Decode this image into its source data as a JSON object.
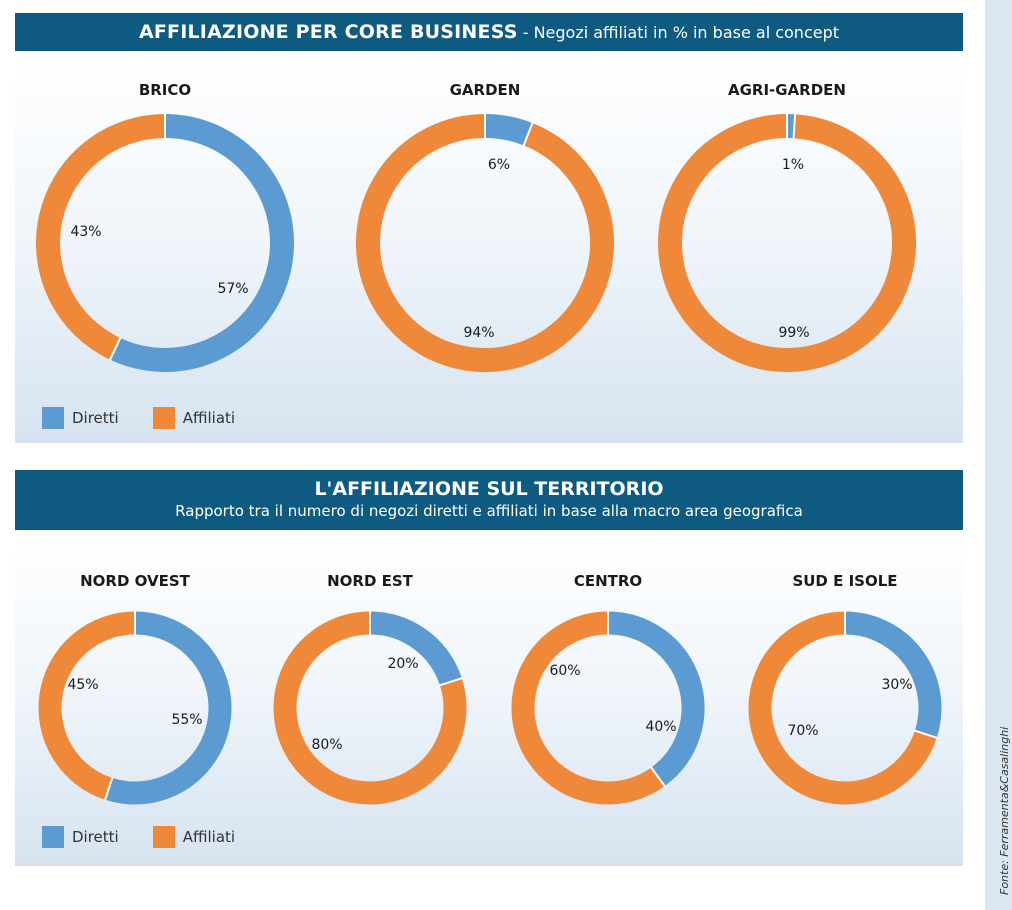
{
  "colors": {
    "direct": "#5b9bd1",
    "affiliated": "#ef8839",
    "header": "#0e5a80"
  },
  "section1": {
    "title": "AFFILIAZIONE PER CORE BUSINESS",
    "separator": " - ",
    "subtitle": "Negozi affiliati in % in base al concept"
  },
  "section2": {
    "title": "L'AFFILIAZIONE SUL TERRITORIO",
    "subtitle": "Rapporto tra il numero di negozi diretti e affiliati in base alla macro area geografica"
  },
  "legend": {
    "direct": "Diretti",
    "affiliated": "Affiliati"
  },
  "source": "Fonte: Ferramenta&Casalinghi",
  "chart_data": [
    {
      "type": "pie",
      "group": "core_business",
      "title": "BRICO",
      "categories": [
        "Diretti",
        "Affiliati"
      ],
      "values": [
        57,
        43
      ],
      "labels": [
        "57%",
        "43%"
      ]
    },
    {
      "type": "pie",
      "group": "core_business",
      "title": "GARDEN",
      "categories": [
        "Diretti",
        "Affiliati"
      ],
      "values": [
        6,
        94
      ],
      "labels": [
        "6%",
        "94%"
      ]
    },
    {
      "type": "pie",
      "group": "core_business",
      "title": "AGRI-GARDEN",
      "categories": [
        "Diretti",
        "Affiliati"
      ],
      "values": [
        1,
        99
      ],
      "labels": [
        "1%",
        "99%"
      ]
    },
    {
      "type": "pie",
      "group": "territorio",
      "title": "NORD OVEST",
      "categories": [
        "Diretti",
        "Affiliati"
      ],
      "values": [
        55,
        45
      ],
      "labels": [
        "55%",
        "45%"
      ]
    },
    {
      "type": "pie",
      "group": "territorio",
      "title": "NORD EST",
      "categories": [
        "Diretti",
        "Affiliati"
      ],
      "values": [
        20,
        80
      ],
      "labels": [
        "20%",
        "80%"
      ]
    },
    {
      "type": "pie",
      "group": "territorio",
      "title": "CENTRO",
      "categories": [
        "Diretti",
        "Affiliati"
      ],
      "values": [
        40,
        60
      ],
      "labels": [
        "40%",
        "60%"
      ]
    },
    {
      "type": "pie",
      "group": "territorio",
      "title": "SUD E ISOLE",
      "categories": [
        "Diretti",
        "Affiliati"
      ],
      "values": [
        30,
        70
      ],
      "labels": [
        "30%",
        "70%"
      ]
    }
  ]
}
